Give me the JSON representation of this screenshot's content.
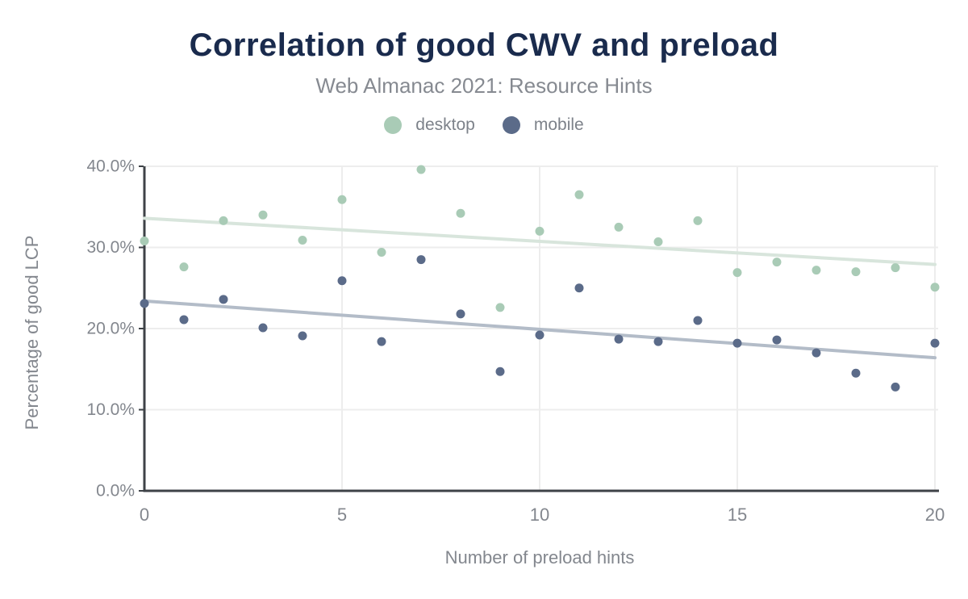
{
  "header": {
    "title": "Correlation of good CWV and preload",
    "subtitle": "Web Almanac 2021: Resource Hints"
  },
  "legend": {
    "items": [
      {
        "label": "desktop",
        "color": "#a9cbb6"
      },
      {
        "label": "mobile",
        "color": "#5b6b89"
      }
    ]
  },
  "chart_data": {
    "type": "scatter",
    "title": "Correlation of good CWV and preload",
    "subtitle": "Web Almanac 2021: Resource Hints",
    "xlabel": "Number of preload hints",
    "ylabel": "Percentage of good LCP",
    "xlim": [
      0,
      20
    ],
    "ylim": [
      0,
      40
    ],
    "grid": true,
    "legend_position": "top",
    "x": [
      0,
      1,
      2,
      3,
      4,
      5,
      6,
      7,
      8,
      9,
      10,
      11,
      12,
      13,
      14,
      15,
      16,
      17,
      18,
      19,
      20
    ],
    "series": [
      {
        "name": "desktop",
        "color": "#a9cbb6",
        "values": [
          30.8,
          27.6,
          33.3,
          34.0,
          30.9,
          35.9,
          29.4,
          39.6,
          34.2,
          22.6,
          32.0,
          36.5,
          32.5,
          30.7,
          33.3,
          26.9,
          28.2,
          27.2,
          27.0,
          27.5,
          25.1
        ]
      },
      {
        "name": "mobile",
        "color": "#5b6b89",
        "values": [
          23.1,
          21.1,
          23.6,
          20.1,
          19.1,
          25.9,
          18.4,
          28.5,
          21.8,
          14.7,
          19.2,
          25.0,
          18.7,
          18.4,
          21.0,
          18.2,
          18.6,
          17.0,
          14.5,
          12.8,
          18.2
        ]
      }
    ],
    "trendlines": [
      {
        "series": "desktop",
        "color": "#d8e5dc",
        "start": 33.6,
        "end": 27.9
      },
      {
        "series": "mobile",
        "color": "#b3bcc8",
        "start": 23.4,
        "end": 16.4
      }
    ],
    "x_ticks": [
      {
        "value": 0,
        "label": "0"
      },
      {
        "value": 5,
        "label": "5"
      },
      {
        "value": 10,
        "label": "10"
      },
      {
        "value": 15,
        "label": "15"
      },
      {
        "value": 20,
        "label": "20"
      }
    ],
    "y_ticks": [
      {
        "value": 0,
        "label": "0.0%"
      },
      {
        "value": 10,
        "label": "10.0%"
      },
      {
        "value": 20,
        "label": "20.0%"
      },
      {
        "value": 30,
        "label": "30.0%"
      },
      {
        "value": 40,
        "label": "40.0%"
      }
    ]
  },
  "colors": {
    "title": "#1a2b4d",
    "subtitle": "#868a91",
    "legend_text": "#7d828a",
    "axis_text": "#83878e",
    "axis_line": "#3e4247",
    "grid_line": "#ededed",
    "background": "#ffffff"
  }
}
